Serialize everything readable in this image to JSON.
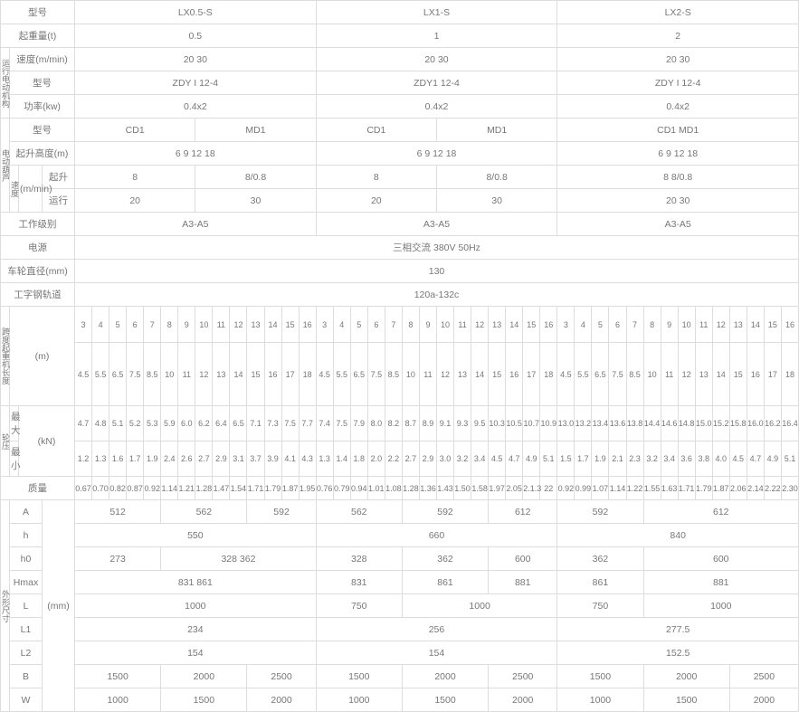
{
  "models": [
    "LX0.5-S",
    "LX1-S",
    "LX2-S"
  ],
  "labels": {
    "model": "型号",
    "lift_cap": "起重量(t)",
    "speed": "速度(m/min)",
    "power": "功率(kw)",
    "lift_height": "起升高度(m)",
    "lift": "起升",
    "run": "运行",
    "mmin": "(m/min)",
    "work_class": "工作级别",
    "power_src": "电源",
    "wheel_dia": "车轮直径(mm)",
    "rail": "工字钢轨道",
    "m": "(m)",
    "kN": "(kN)",
    "max": "最大",
    "min": "最小",
    "mass": "质量",
    "mm": "(mm)",
    "dim": "外形尺寸",
    "vert_motor": "运行电动机构",
    "vert_hoist": "电动葫芦",
    "vert_span": "跨度起重机长度",
    "vert_wp": "轮压",
    "vert_speed": "速度"
  },
  "lift_cap": [
    "0.5",
    "1",
    "2"
  ],
  "speed": [
    "20   30",
    "20   30",
    "20   30"
  ],
  "motor_model": [
    "ZDY I  12-4",
    "ZDY1   12-4",
    "ZDY I  12-4"
  ],
  "motor_power": [
    "0.4x2",
    "0.4x2",
    "0.4x2"
  ],
  "hoist_model": [
    "CD1",
    "MD1",
    "CD1",
    "MD1",
    "CD1   MD1"
  ],
  "hoist_height": [
    "6 9 12 18",
    "6 9 12 18",
    "6 9 12 18"
  ],
  "hoist_lift": [
    "8",
    "8/0.8",
    "8",
    "8/0.8",
    "8 8/0.8"
  ],
  "hoist_run": [
    "20",
    "30",
    "20",
    "30",
    "20 30"
  ],
  "work_class": [
    "A3-A5",
    "A3-A5",
    "A3-A5"
  ],
  "power_src": "三相交流 380V 50Hz",
  "wheel_dia": "130",
  "rail": "120a-132c",
  "span_nums": [
    "3",
    "4",
    "5",
    "6",
    "7",
    "8",
    "9",
    "10",
    "11",
    "12",
    "13",
    "14",
    "15",
    "16",
    "3",
    "4",
    "5",
    "6",
    "7",
    "8",
    "9",
    "10",
    "11",
    "12",
    "13",
    "14",
    "15",
    "16",
    "3",
    "4",
    "5",
    "6",
    "7",
    "8",
    "9",
    "10",
    "11",
    "12",
    "13",
    "14",
    "15",
    "16"
  ],
  "span_m": [
    "4.5",
    "5.5",
    "6.5",
    "7.5",
    "8.5",
    "10",
    "11",
    "12",
    "13",
    "14",
    "15",
    "16",
    "17",
    "18",
    "4.5",
    "5.5",
    "6.5",
    "7.5",
    "8.5",
    "10",
    "11",
    "12",
    "13",
    "14",
    "15",
    "16",
    "17",
    "18",
    "4.5",
    "5.5",
    "6.5",
    "7.5",
    "8.5",
    "10",
    "11",
    "12",
    "13",
    "14",
    "15",
    "16",
    "17",
    "18"
  ],
  "wp_max": [
    "4.7",
    "4.8",
    "5.1",
    "5.2",
    "5.3",
    "5.9",
    "6.0",
    "6.2",
    "6.4",
    "6.5",
    "7.1",
    "7.3",
    "7.5",
    "7.7",
    "7.4",
    "7.5",
    "7.9",
    "8.0",
    "8.2",
    "8.7",
    "8.9",
    "9.1",
    "9.3",
    "9.5",
    "10.3",
    "10.5",
    "10.7",
    "10.9",
    "13.0",
    "13.2",
    "13.4",
    "13.6",
    "13.8",
    "14.4",
    "14.6",
    "14.8",
    "15.0",
    "15.2",
    "15.8",
    "16.0",
    "16.2",
    "16.4"
  ],
  "wp_min": [
    "1.2",
    "1.3",
    "1.6",
    "1.7",
    "1.9",
    "2.4",
    "2.6",
    "2.7",
    "2.9",
    "3.1",
    "3.7",
    "3.9",
    "4.1",
    "4.3",
    "1.3",
    "1.4",
    "1.8",
    "2.0",
    "2.2",
    "2.7",
    "2.9",
    "3.0",
    "3.2",
    "3.4",
    "4.5",
    "4.7",
    "4.9",
    "5.1",
    "1.5",
    "1.7",
    "1.9",
    "2.1",
    "2.3",
    "3.2",
    "3.4",
    "3.6",
    "3.8",
    "4.0",
    "4.5",
    "4.7",
    "4.9",
    "5.1"
  ],
  "mass": [
    "0.67",
    "0.70",
    "0.82",
    "0.87",
    "0.92",
    "1.14",
    "1.21",
    "1.28",
    "1.47",
    "1.54",
    "1.71",
    "1.79",
    "1.87",
    "1.95",
    "0.76",
    "0.79",
    "0.94",
    "1.01",
    "1.08",
    "1.28",
    "1.36",
    "1.43",
    "1.50",
    "1.58",
    "1.97",
    "2.05",
    "2.1.3",
    "22",
    "0.92",
    "0.99",
    "1.07",
    "1.14",
    "1.22",
    "1.55",
    "1.63",
    "1.71",
    "1.79",
    "1.87",
    "2.06",
    "2.14",
    "2.22",
    "2.30"
  ],
  "dims": {
    "A": [
      "512",
      "562",
      "592",
      "562",
      "592",
      "612",
      "592",
      "612"
    ],
    "h": [
      "550",
      "660",
      "840"
    ],
    "h0": [
      "273",
      "328    362",
      "328",
      "362",
      "600",
      "362",
      "600"
    ],
    "Hmax": [
      "831    861",
      "831",
      "861",
      "881",
      "861",
      "881"
    ],
    "L": [
      "1000",
      "750",
      "1000",
      "750",
      "1000"
    ],
    "L1": [
      "234",
      "256",
      "277.5"
    ],
    "L2": [
      "154",
      "154",
      "152.5"
    ],
    "B": [
      "1500",
      "2000",
      "2500",
      "1500",
      "2000",
      "2500",
      "1500",
      "2000",
      "2500"
    ],
    "W": [
      "1000",
      "1500",
      "2000",
      "1000",
      "1500",
      "2000",
      "1000",
      "1500",
      "2000"
    ]
  },
  "dim_labels": [
    "A",
    "h",
    "h0",
    "Hmax",
    "L",
    "L1",
    "L2",
    "B",
    "W"
  ]
}
